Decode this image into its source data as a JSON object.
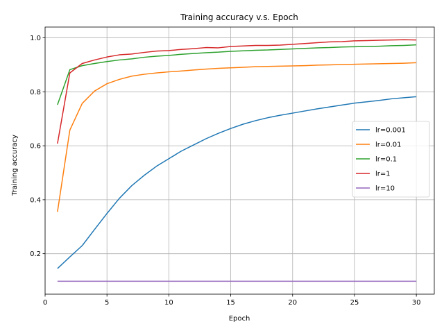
{
  "chart_data": {
    "type": "line",
    "title": "Training accuracy v.s. Epoch",
    "xlabel": "Epoch",
    "ylabel": "Training accuracy",
    "xlim": [
      0.0,
      31.45
    ],
    "ylim": [
      0.05,
      1.04
    ],
    "xticks": [
      0,
      5,
      10,
      15,
      20,
      25,
      30
    ],
    "yticks": [
      0.2,
      0.4,
      0.6,
      0.8,
      1.0
    ],
    "grid": true,
    "legend": "center-right",
    "x": [
      1,
      2,
      3,
      4,
      5,
      6,
      7,
      8,
      9,
      10,
      11,
      12,
      13,
      14,
      15,
      16,
      17,
      18,
      19,
      20,
      21,
      22,
      23,
      24,
      25,
      26,
      27,
      28,
      29,
      30
    ],
    "series": [
      {
        "name": "lr=0.001",
        "color": "#1f77b4",
        "values": [
          0.145,
          0.188,
          0.23,
          0.29,
          0.349,
          0.405,
          0.452,
          0.49,
          0.524,
          0.552,
          0.58,
          0.603,
          0.626,
          0.646,
          0.664,
          0.68,
          0.693,
          0.704,
          0.713,
          0.721,
          0.729,
          0.737,
          0.744,
          0.751,
          0.758,
          0.763,
          0.768,
          0.774,
          0.778,
          0.782
        ]
      },
      {
        "name": "lr=0.01",
        "color": "#ff7f0e",
        "values": [
          0.355,
          0.658,
          0.757,
          0.803,
          0.83,
          0.846,
          0.858,
          0.865,
          0.87,
          0.874,
          0.877,
          0.881,
          0.884,
          0.887,
          0.889,
          0.891,
          0.893,
          0.894,
          0.895,
          0.896,
          0.897,
          0.899,
          0.9,
          0.901,
          0.902,
          0.903,
          0.904,
          0.905,
          0.906,
          0.908
        ]
      },
      {
        "name": "lr=0.1",
        "color": "#2ca02c",
        "values": [
          0.752,
          0.882,
          0.897,
          0.905,
          0.912,
          0.918,
          0.922,
          0.928,
          0.932,
          0.935,
          0.939,
          0.942,
          0.945,
          0.947,
          0.95,
          0.952,
          0.954,
          0.955,
          0.957,
          0.959,
          0.961,
          0.963,
          0.964,
          0.966,
          0.967,
          0.968,
          0.969,
          0.971,
          0.972,
          0.974
        ]
      },
      {
        "name": "lr=1",
        "color": "#d62728",
        "values": [
          0.608,
          0.87,
          0.905,
          0.918,
          0.929,
          0.937,
          0.94,
          0.946,
          0.951,
          0.953,
          0.957,
          0.96,
          0.964,
          0.963,
          0.968,
          0.97,
          0.972,
          0.972,
          0.973,
          0.976,
          0.979,
          0.982,
          0.985,
          0.986,
          0.989,
          0.99,
          0.991,
          0.992,
          0.993,
          0.992
        ]
      },
      {
        "name": "lr=10",
        "color": "#9467bd",
        "values": [
          0.098,
          0.098,
          0.098,
          0.098,
          0.098,
          0.098,
          0.098,
          0.098,
          0.098,
          0.098,
          0.098,
          0.098,
          0.098,
          0.098,
          0.098,
          0.098,
          0.098,
          0.098,
          0.098,
          0.098,
          0.098,
          0.098,
          0.098,
          0.098,
          0.098,
          0.098,
          0.098,
          0.098,
          0.098,
          0.098
        ]
      }
    ]
  }
}
